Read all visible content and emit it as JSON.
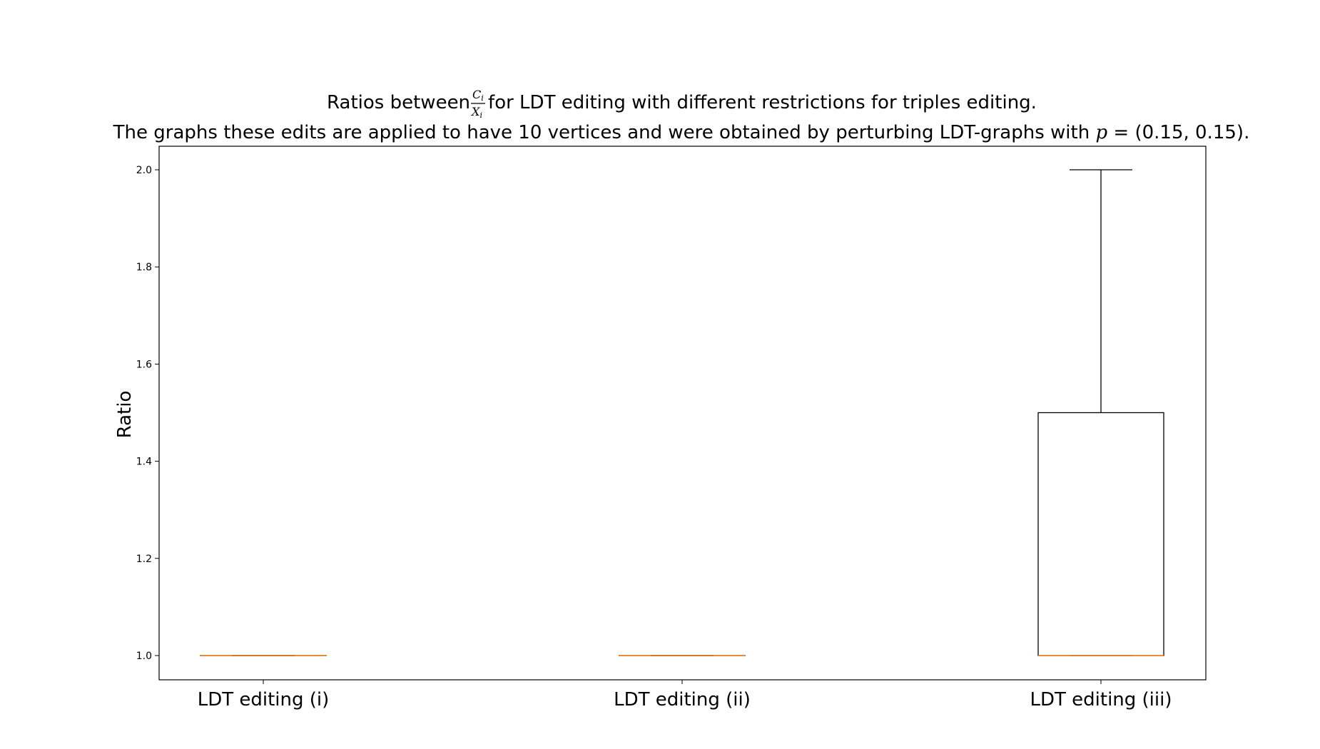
{
  "chart_data": {
    "type": "box",
    "title": {
      "line1_prefix": "Ratios between ",
      "fraction_numerator": "C",
      "fraction_numerator_sub": "i",
      "fraction_denominator": "X",
      "fraction_denominator_sub": "i",
      "line1_suffix": " for LDT editing with different restrictions for triples editing.",
      "line2_prefix": "The graphs these edits are applied to have 10 vertices and were obtained by perturbing LDT-graphs with ",
      "line2_math": "p",
      "line2_eq": " = ",
      "line2_value": "(0.15, 0.15)",
      "line2_suffix": "."
    },
    "xlabel": "",
    "ylabel": "Ratio",
    "ylim": [
      0.952,
      2.05
    ],
    "yticks": [
      1.0,
      1.2,
      1.4,
      1.6,
      1.8,
      2.0
    ],
    "ytick_labels": [
      "1.0",
      "1.2",
      "1.4",
      "1.6",
      "1.8",
      "2.0"
    ],
    "categories": [
      "LDT editing (i)",
      "LDT editing (ii)",
      "LDT editing (iii)"
    ],
    "boxes": [
      {
        "whisker_low": 1.0,
        "q1": 1.0,
        "median": 1.0,
        "q3": 1.0,
        "whisker_high": 1.0
      },
      {
        "whisker_low": 1.0,
        "q1": 1.0,
        "median": 1.0,
        "q3": 1.0,
        "whisker_high": 1.0
      },
      {
        "whisker_low": 1.0,
        "q1": 1.0,
        "median": 1.0,
        "q3": 1.5,
        "whisker_high": 2.0
      }
    ],
    "colors": {
      "box": "#000000",
      "median": "#ff7f0e",
      "frame": "#000000"
    },
    "grid": false,
    "legend": "none"
  }
}
